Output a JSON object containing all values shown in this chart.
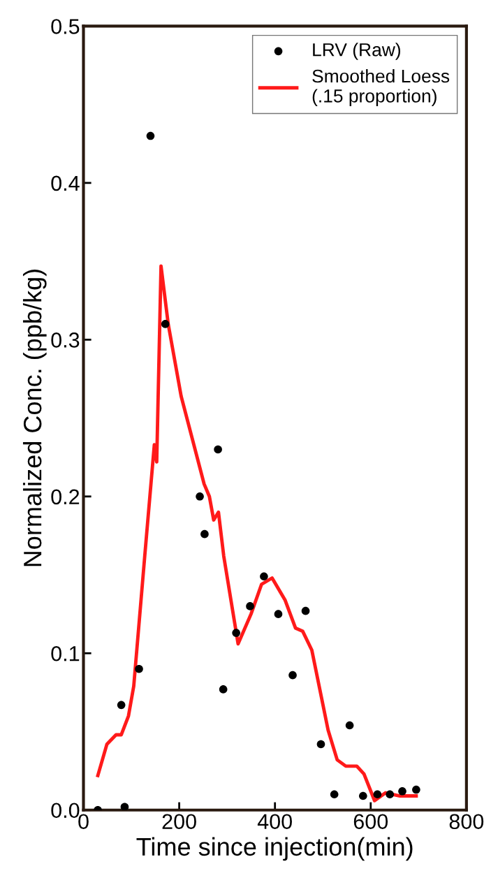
{
  "chart_data": {
    "type": "scatter",
    "xlabel": "Time since injection(min)",
    "ylabel": "Normalized Conc. (ppb/kg)",
    "xlim": [
      0,
      800
    ],
    "xticks": [
      0,
      200,
      400,
      600,
      800
    ],
    "ylim": [
      0,
      0.5
    ],
    "yticks": [
      {
        "value": 0,
        "label": "0.0"
      },
      0.1,
      0.2,
      0.3,
      0.4,
      0.5
    ],
    "grid": false,
    "legend": "top right",
    "series": [
      {
        "name": "LRV (Raw)",
        "color": "#000000",
        "marker": "circle",
        "x": [
          30,
          79,
          86,
          116,
          140,
          171,
          243,
          253,
          281,
          292,
          319,
          348,
          377,
          407,
          437,
          464,
          496,
          524,
          556,
          584,
          614,
          640,
          666,
          695
        ],
        "values": [
          0.0,
          0.067,
          0.002,
          0.09,
          0.43,
          0.31,
          0.2,
          0.176,
          0.23,
          0.077,
          0.113,
          0.13,
          0.149,
          0.125,
          0.086,
          0.127,
          0.042,
          0.01,
          0.054,
          0.009,
          0.01,
          0.01,
          0.012,
          0.013
        ]
      },
      {
        "name": "Smoothed Loess\n(.15 proportion)",
        "type": "line",
        "color": "#ff1a1a",
        "line_style": "solid",
        "marker": "none",
        "x": [
          30,
          49,
          68,
          79,
          94,
          105,
          128,
          148,
          153,
          162,
          177,
          204,
          252,
          263,
          272,
          282,
          293,
          323,
          350,
          372,
          394,
          421,
          443,
          458,
          477,
          511,
          530,
          548,
          571,
          586,
          608,
          631,
          661,
          695
        ],
        "values": [
          0.022,
          0.042,
          0.048,
          0.048,
          0.06,
          0.079,
          0.162,
          0.233,
          0.222,
          0.347,
          0.31,
          0.264,
          0.208,
          0.2,
          0.185,
          0.19,
          0.162,
          0.106,
          0.125,
          0.144,
          0.148,
          0.134,
          0.116,
          0.114,
          0.102,
          0.051,
          0.032,
          0.028,
          0.028,
          0.023,
          0.006,
          0.011,
          0.009,
          0.009
        ]
      }
    ]
  }
}
